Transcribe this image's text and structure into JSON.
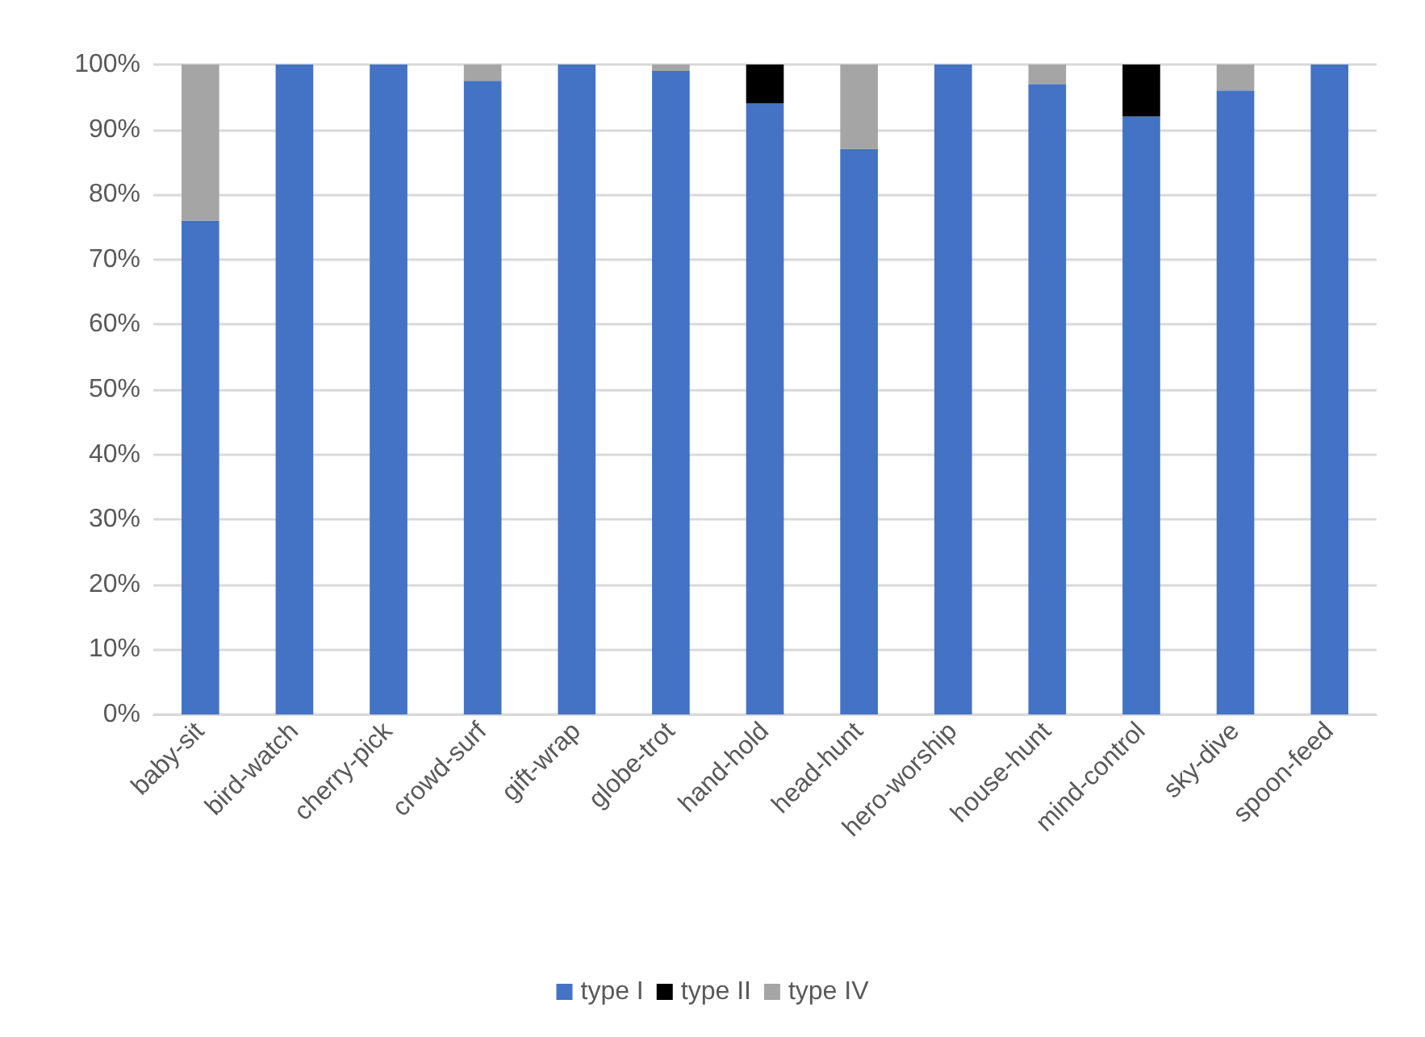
{
  "chart_data": {
    "type": "bar",
    "stacked": true,
    "categories": [
      "baby-sit",
      "bird-watch",
      "cherry-pick",
      "crowd-surf",
      "gift-wrap",
      "globe-trot",
      "hand-hold",
      "head-hunt",
      "hero-worship",
      "house-hunt",
      "mind-control",
      "sky-dive",
      "spoon-feed"
    ],
    "series": [
      {
        "name": "type I",
        "color": "#4472c4",
        "values": [
          76,
          100,
          100,
          97.5,
          100,
          99,
          94,
          87,
          100,
          97,
          92,
          96,
          100
        ]
      },
      {
        "name": "type II",
        "color": "#000000",
        "values": [
          0,
          0,
          0,
          0,
          0,
          0,
          6,
          0,
          0,
          0,
          8,
          0,
          0
        ]
      },
      {
        "name": "type IV",
        "color": "#a5a5a5",
        "values": [
          24,
          0,
          0,
          2.5,
          0,
          1,
          0,
          13,
          0,
          3,
          0,
          4,
          0
        ]
      }
    ],
    "ylim": [
      0,
      100
    ],
    "yticks": [
      {
        "value": 0,
        "label": "0%"
      },
      {
        "value": 10,
        "label": "10%"
      },
      {
        "value": 20,
        "label": "20%"
      },
      {
        "value": 30,
        "label": "30%"
      },
      {
        "value": 40,
        "label": "40%"
      },
      {
        "value": 50,
        "label": "50%"
      },
      {
        "value": 60,
        "label": "60%"
      },
      {
        "value": 70,
        "label": "70%"
      },
      {
        "value": 80,
        "label": "80%"
      },
      {
        "value": 90,
        "label": "90%"
      },
      {
        "value": 100,
        "label": "100%"
      }
    ],
    "grid": "y",
    "legend": "bottom"
  }
}
